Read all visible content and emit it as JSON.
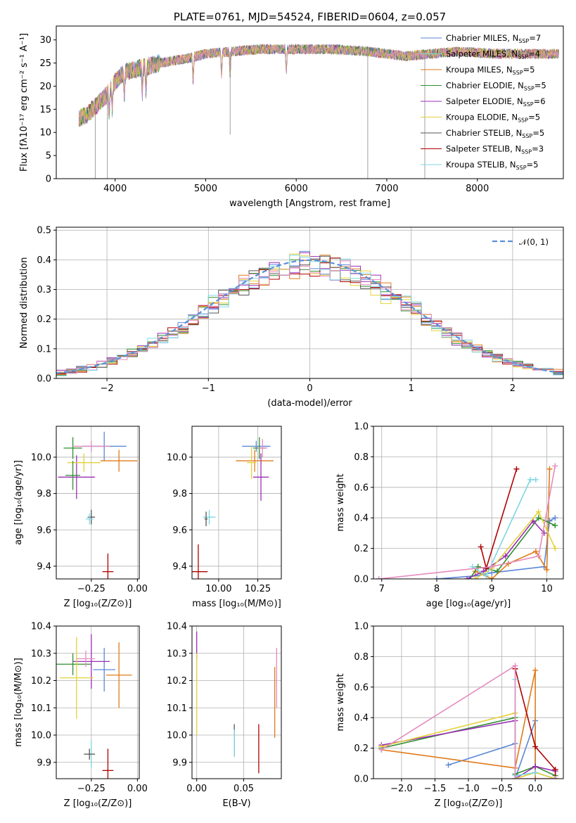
{
  "colors": [
    "#5b86d8",
    "#e07b1a",
    "#2f8f2f",
    "#9a2fb5",
    "#e3d23a",
    "#555555",
    "#b00000",
    "#7fd6e0",
    "#e58bbe",
    "#1e7fd8"
  ],
  "chart_data": [
    {
      "id": "spectrum",
      "type": "line",
      "title": "PLATE=0761, MJD=54524, FIBERID=0604, z=0.057",
      "xlabel": "wavelength [Angstrom, rest frame]",
      "ylabel": "Flux [fλ10⁻¹⁷ erg cm⁻² s⁻¹ A⁻¹]",
      "xlim": [
        3350,
        8950
      ],
      "ylim": [
        0,
        33
      ],
      "xticks": [
        4000,
        5000,
        6000,
        7000,
        8000
      ],
      "yticks": [
        0,
        5,
        10,
        15,
        20,
        25,
        30
      ],
      "legend_position": "top-right",
      "continuum": {
        "x": [
          3600,
          3700,
          3800,
          3900,
          4000,
          4100,
          4300,
          4500,
          4800,
          5000,
          5300,
          5600,
          6000,
          6400,
          6800,
          7200,
          7500,
          7800,
          8200,
          8900
        ],
        "y": [
          13,
          14,
          16,
          18,
          21,
          23,
          24,
          25,
          26,
          27,
          27.5,
          28,
          28,
          28,
          27.5,
          26.5,
          27,
          27.5,
          27,
          27
        ]
      },
      "series": [
        {
          "name": "Chabrier MILES, N",
          "sub": "SSP",
          "suffix": "=7",
          "color": "#5b86d8"
        },
        {
          "name": "Salpeter MILES, N",
          "sub": "SSP",
          "suffix": "=4",
          "color": "#7fd6e0"
        },
        {
          "name": "Kroupa MILES, N",
          "sub": "SSP",
          "suffix": "=5",
          "color": "#e07b1a"
        },
        {
          "name": "Chabrier ELODIE, N",
          "sub": "SSP",
          "suffix": "=5",
          "color": "#2f8f2f"
        },
        {
          "name": "Salpeter ELODIE, N",
          "sub": "SSP",
          "suffix": "=6",
          "color": "#9a2fb5"
        },
        {
          "name": "Kroupa ELODIE, N",
          "sub": "SSP",
          "suffix": "=5",
          "color": "#e3d23a"
        },
        {
          "name": "Chabrier STELIB, N",
          "sub": "SSP",
          "suffix": "=5",
          "color": "#555555"
        },
        {
          "name": "Salpeter STELIB, N",
          "sub": "SSP",
          "suffix": "=3",
          "color": "#b00000"
        },
        {
          "name": "Kroupa STELIB, N",
          "sub": "SSP",
          "suffix": "=5",
          "color": "#7fd6e0"
        }
      ]
    },
    {
      "id": "residuals",
      "type": "histogram",
      "xlabel": "(data-model)/error",
      "ylabel": "Normed distribution",
      "xlim": [
        -2.5,
        2.5
      ],
      "ylim": [
        0,
        0.51
      ],
      "xticks": [
        -2,
        -1,
        0,
        1,
        2
      ],
      "xtick_labels": [
        "−2",
        "−1",
        "0",
        "1",
        "2"
      ],
      "yticks": [
        0.0,
        0.1,
        0.2,
        0.3,
        0.4,
        0.5
      ],
      "ytick_labels": [
        "0.0",
        "0.1",
        "0.2",
        "0.3",
        "0.4",
        "0.5"
      ],
      "grid": true,
      "bin_width": 0.1,
      "legend": {
        "label": "𝒩(0, 1)",
        "position": "top-right"
      },
      "series_count": 9
    },
    {
      "id": "age-vs-Z",
      "type": "errorbar",
      "xlabel": "Z [log₁₀(Z/Z⊙)]",
      "ylabel": "age  [log₁₀(age/yr)]",
      "xlim": [
        -0.44,
        0.01
      ],
      "ylim": [
        9.33,
        10.17
      ],
      "xticks": [
        -0.25,
        0.0
      ],
      "xtick_labels": [
        "−0.25",
        "0.00"
      ],
      "yticks": [
        9.4,
        9.6,
        9.8,
        10.0
      ],
      "ytick_labels": [
        "9.4",
        "9.6",
        "9.8",
        "10.0"
      ],
      "points": [
        {
          "x": -0.18,
          "xe": 0.12,
          "y": 10.06,
          "ye": 0.08,
          "c": 0
        },
        {
          "x": -0.1,
          "xe": 0.1,
          "y": 9.98,
          "ye": 0.06,
          "c": 1
        },
        {
          "x": -0.35,
          "xe": 0.05,
          "y": 10.05,
          "ye": 0.06,
          "c": 2
        },
        {
          "x": -0.33,
          "xe": 0.1,
          "y": 9.89,
          "ye": 0.12,
          "c": 3
        },
        {
          "x": -0.29,
          "xe": 0.09,
          "y": 9.97,
          "ye": 0.05,
          "c": 4
        },
        {
          "x": -0.25,
          "xe": 0.1,
          "y": 10.06,
          "ye": 0.03,
          "c": 8
        },
        {
          "x": -0.25,
          "xe": 0.02,
          "y": 9.67,
          "ye": 0.04,
          "c": 5
        },
        {
          "x": -0.16,
          "xe": 0.03,
          "y": 9.37,
          "ye": 0.1,
          "c": 6
        },
        {
          "x": -0.26,
          "xe": 0.02,
          "y": 9.66,
          "ye": 0.03,
          "c": 7
        },
        {
          "x": -0.35,
          "xe": 0.04,
          "y": 9.9,
          "ye": 0.08,
          "c": 2
        }
      ]
    },
    {
      "id": "age-vs-mass",
      "type": "errorbar",
      "xlabel": "mass [log₁₀(M/M⊙)]",
      "ylabel": "",
      "xlim": [
        9.83,
        10.4
      ],
      "ylim": [
        9.33,
        10.17
      ],
      "xticks": [
        10.0,
        10.25
      ],
      "xtick_labels": [
        "10.00",
        "10.25"
      ],
      "yticks": [
        9.4,
        9.6,
        9.8,
        10.0
      ],
      "ytick_labels": [
        "9.4",
        "9.6",
        "9.8",
        "10.0"
      ],
      "points": [
        {
          "x": 10.24,
          "xe": 0.09,
          "y": 10.06,
          "ye": 0.03,
          "c": 0
        },
        {
          "x": 10.23,
          "xe": 0.12,
          "y": 9.98,
          "ye": 0.06,
          "c": 1
        },
        {
          "x": 10.26,
          "xe": 0.04,
          "y": 10.05,
          "ye": 0.06,
          "c": 2
        },
        {
          "x": 10.27,
          "xe": 0.05,
          "y": 9.89,
          "ye": 0.13,
          "c": 3
        },
        {
          "x": 10.21,
          "xe": 0.03,
          "y": 9.97,
          "ye": 0.09,
          "c": 4
        },
        {
          "x": 10.28,
          "xe": 0.03,
          "y": 10.05,
          "ye": 0.05,
          "c": 8
        },
        {
          "x": 9.94,
          "xe": 0.04,
          "y": 9.67,
          "ye": 0.04,
          "c": 7
        },
        {
          "x": 9.87,
          "xe": 0.06,
          "y": 9.37,
          "ye": 0.15,
          "c": 6
        },
        {
          "x": 9.92,
          "xe": 0.01,
          "y": 9.66,
          "ye": 0.04,
          "c": 5
        }
      ]
    },
    {
      "id": "mass-weight-vs-age",
      "type": "line",
      "xlabel": "age  [log₁₀(age/yr)]",
      "ylabel": "mass weight",
      "xlim": [
        6.85,
        10.3
      ],
      "ylim": [
        0,
        1
      ],
      "xticks": [
        7,
        8,
        9,
        10
      ],
      "xtick_labels": [
        "7",
        "8",
        "9",
        "10"
      ],
      "yticks": [
        0,
        0.2,
        0.4,
        0.6,
        0.8,
        1.0
      ],
      "ytick_labels": [
        "0.0",
        "0.2",
        "0.4",
        "0.6",
        "0.8",
        "1.0"
      ],
      "grid": true,
      "series": [
        {
          "c": 0,
          "x": [
            8.0,
            8.7,
            9.0,
            9.95,
            10.05,
            10.15
          ],
          "y": [
            0.0,
            0.02,
            0.04,
            0.08,
            0.38,
            0.4
          ]
        },
        {
          "c": 1,
          "x": [
            8.7,
            9.0,
            9.3,
            9.8,
            10.0,
            10.05
          ],
          "y": [
            0.05,
            0.0,
            0.1,
            0.18,
            0.06,
            0.72
          ]
        },
        {
          "c": 2,
          "x": [
            8.6,
            8.75,
            9.1,
            9.85,
            10.15
          ],
          "y": [
            0.0,
            0.08,
            0.05,
            0.4,
            0.35
          ]
        },
        {
          "c": 3,
          "x": [
            8.55,
            8.85,
            9.25,
            9.75,
            9.95
          ],
          "y": [
            0.0,
            0.05,
            0.15,
            0.38,
            0.3
          ]
        },
        {
          "c": 4,
          "x": [
            8.7,
            9.0,
            9.85,
            10.15
          ],
          "y": [
            0.0,
            0.07,
            0.44,
            0.2
          ]
        },
        {
          "c": 6,
          "x": [
            8.8,
            8.9,
            9.45
          ],
          "y": [
            0.21,
            0.07,
            0.72
          ]
        },
        {
          "c": 7,
          "x": [
            8.65,
            8.9,
            9.7,
            9.8
          ],
          "y": [
            0.08,
            0.02,
            0.65,
            0.65
          ]
        },
        {
          "c": 8,
          "x": [
            6.95,
            9.0,
            9.85,
            10.15
          ],
          "y": [
            0.0,
            0.08,
            0.15,
            0.74
          ]
        }
      ]
    },
    {
      "id": "mass-vs-Z",
      "type": "errorbar",
      "xlabel": "Z [log₁₀(Z/Z⊙)]",
      "ylabel": "mass [log₁₀(M/M⊙)]",
      "xlim": [
        -0.44,
        0.01
      ],
      "ylim": [
        9.84,
        10.4
      ],
      "xticks": [
        -0.25,
        0.0
      ],
      "xtick_labels": [
        "−0.25",
        "0.00"
      ],
      "yticks": [
        9.9,
        10.0,
        10.1,
        10.2,
        10.3,
        10.4
      ],
      "ytick_labels": [
        "9.9",
        "10.0",
        "10.1",
        "10.2",
        "10.3",
        "10.4"
      ],
      "points": [
        {
          "x": -0.18,
          "xe": 0.06,
          "y": 10.24,
          "ye": 0.08,
          "c": 0
        },
        {
          "x": -0.1,
          "xe": 0.07,
          "y": 10.22,
          "ye": 0.12,
          "c": 1
        },
        {
          "x": -0.35,
          "xe": 0.1,
          "y": 10.26,
          "ye": 0.04,
          "c": 2
        },
        {
          "x": -0.25,
          "xe": 0.1,
          "y": 10.27,
          "ye": 0.1,
          "c": 3
        },
        {
          "x": -0.33,
          "xe": 0.09,
          "y": 10.21,
          "ye": 0.15,
          "c": 4
        },
        {
          "x": -0.28,
          "xe": 0.05,
          "y": 10.28,
          "ye": 0.03,
          "c": 8
        },
        {
          "x": -0.25,
          "xe": 0.02,
          "y": 9.93,
          "ye": 0.05,
          "c": 7
        },
        {
          "x": -0.16,
          "xe": 0.03,
          "y": 9.87,
          "ye": 0.08,
          "c": 6
        },
        {
          "x": -0.26,
          "xe": 0.03,
          "y": 9.93,
          "ye": 0.02,
          "c": 5
        }
      ]
    },
    {
      "id": "mass-vs-EBV",
      "type": "errorbar",
      "xlabel": "E(B-V)",
      "ylabel": "",
      "xlim": [
        -0.005,
        0.09
      ],
      "ylim": [
        9.84,
        10.4
      ],
      "xticks": [
        0.0,
        0.05
      ],
      "xtick_labels": [
        "0.00",
        "0.05"
      ],
      "yticks": [
        9.9,
        10.0,
        10.1,
        10.2,
        10.3,
        10.4
      ],
      "ytick_labels": [
        "9.9",
        "10.0",
        "10.1",
        "10.2",
        "10.3",
        "10.4"
      ],
      "points": [
        {
          "x": 0.085,
          "xe": 0.0,
          "y": 10.21,
          "ye": 0.11,
          "c": 8
        },
        {
          "x": 0.083,
          "xe": 0.0,
          "y": 10.12,
          "ye": 0.13,
          "c": 1
        },
        {
          "x": 0.0,
          "xe": 0.0,
          "y": 10.33,
          "ye": 0.05,
          "c": 3
        },
        {
          "x": 0.0,
          "xe": 0.0,
          "y": 10.15,
          "ye": 0.15,
          "c": 4
        },
        {
          "x": 0.04,
          "xe": 0.0,
          "y": 9.98,
          "ye": 0.06,
          "c": 5
        },
        {
          "x": 0.066,
          "xe": 0.0,
          "y": 9.95,
          "ye": 0.09,
          "c": 6
        },
        {
          "x": 0.04,
          "xe": 0.0,
          "y": 9.97,
          "ye": 0.05,
          "c": 7
        }
      ]
    },
    {
      "id": "mass-weight-vs-Z",
      "type": "line",
      "xlabel": "Z [log₁₀(Z/Z⊙)]",
      "ylabel": "mass weight",
      "xlim": [
        -2.42,
        0.42
      ],
      "ylim": [
        0,
        1
      ],
      "xticks": [
        -2.0,
        -1.5,
        -1.0,
        -0.5,
        0.0
      ],
      "xtick_labels": [
        "−2.0",
        "−1.5",
        "−1.0",
        "−0.5",
        "0.0"
      ],
      "yticks": [
        0,
        0.2,
        0.4,
        0.6,
        0.8,
        1.0
      ],
      "ytick_labels": [
        "0.0",
        "0.2",
        "0.4",
        "0.6",
        "0.8",
        "1.0"
      ],
      "grid": true,
      "series": [
        {
          "c": 0,
          "x": [
            -1.3,
            -0.3,
            -0.3,
            0.0,
            0.0,
            0.3
          ],
          "y": [
            0.09,
            0.23,
            0.0,
            0.38,
            0.04,
            0.0
          ]
        },
        {
          "c": 1,
          "x": [
            -2.3,
            -0.3,
            0.0,
            0.0,
            0.3
          ],
          "y": [
            0.19,
            0.07,
            0.71,
            0.0,
            0.0
          ]
        },
        {
          "c": 2,
          "x": [
            -2.3,
            -0.3,
            -0.3,
            0.0,
            0.3
          ],
          "y": [
            0.2,
            0.4,
            0.03,
            0.08,
            0.02
          ]
        },
        {
          "c": 3,
          "x": [
            -2.3,
            -0.3,
            -0.3,
            0.0,
            0.3
          ],
          "y": [
            0.22,
            0.38,
            0.0,
            0.08,
            0.05
          ]
        },
        {
          "c": 4,
          "x": [
            -2.3,
            -0.3,
            -0.3,
            0.0,
            0.3
          ],
          "y": [
            0.21,
            0.43,
            0.0,
            0.04,
            0.0
          ]
        },
        {
          "c": 6,
          "x": [
            -0.3,
            0.0,
            0.3,
            0.3
          ],
          "y": [
            0.72,
            0.21,
            0.06,
            0.0
          ]
        },
        {
          "c": 7,
          "x": [
            -0.3,
            -0.3,
            0.0
          ],
          "y": [
            0.65,
            0.02,
            0.04
          ]
        },
        {
          "c": 8,
          "x": [
            -2.3,
            -0.3,
            -0.3,
            0.3
          ],
          "y": [
            0.19,
            0.74,
            0.0,
            0.0
          ]
        }
      ]
    }
  ]
}
